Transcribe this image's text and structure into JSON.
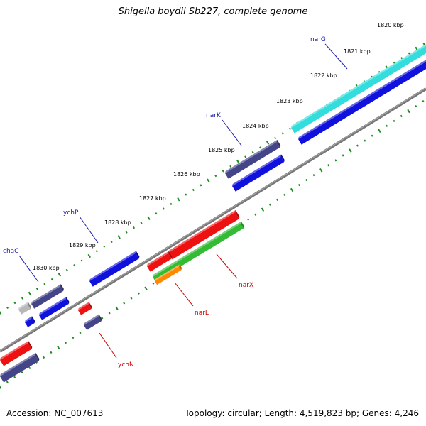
{
  "title": "Shigella boydii Sb227, complete genome",
  "footer": {
    "accession": "Accession: NC_007613",
    "summary": "Topology: circular; Length: 4,519,823 bp; Genes: 4,246"
  },
  "colors": {
    "backbone": "#777777",
    "ticks": "#1e8c1e",
    "label_forward": "#1a1aa8",
    "label_reverse": "#cc0000"
  },
  "kbp_ticks": [
    "1820 kbp",
    "1821 kbp",
    "1822 kbp",
    "1823 kbp",
    "1824 kbp",
    "1825 kbp",
    "1826 kbp",
    "1827 kbp",
    "1828 kbp",
    "1829 kbp",
    "1830 kbp"
  ],
  "gene_labels": [
    {
      "name": "narG",
      "strand": "forward"
    },
    {
      "name": "narK",
      "strand": "forward"
    },
    {
      "name": "ychP",
      "strand": "forward"
    },
    {
      "name": "chaC",
      "strand": "forward"
    },
    {
      "name": "narX",
      "strand": "reverse"
    },
    {
      "name": "narL",
      "strand": "reverse"
    },
    {
      "name": "ychN",
      "strand": "reverse"
    }
  ],
  "features": [
    {
      "name": "narG",
      "color": "#33dddd"
    },
    {
      "name": "narG-cds",
      "color": "#1111dd"
    },
    {
      "name": "narK",
      "color": "#444488"
    },
    {
      "name": "narK-cds",
      "color": "#1111dd"
    },
    {
      "name": "ychP",
      "color": "#1111dd"
    },
    {
      "name": "chaC",
      "color": "#444488"
    },
    {
      "name": "chaC-cds",
      "color": "#1111dd"
    },
    {
      "name": "small-gray",
      "color": "#b8b8b8"
    },
    {
      "name": "small-blue",
      "color": "#1111dd"
    },
    {
      "name": "narX",
      "color": "#ee1111"
    },
    {
      "name": "narX-cds",
      "color": "#33bb33"
    },
    {
      "name": "narL",
      "color": "#ee1111"
    },
    {
      "name": "narL-cds",
      "color": "#ff8800"
    },
    {
      "name": "ychN",
      "color": "#ee1111"
    },
    {
      "name": "ychN-cds",
      "color": "#444488"
    },
    {
      "name": "left-red",
      "color": "#ee1111"
    },
    {
      "name": "left-navy",
      "color": "#444488"
    }
  ]
}
